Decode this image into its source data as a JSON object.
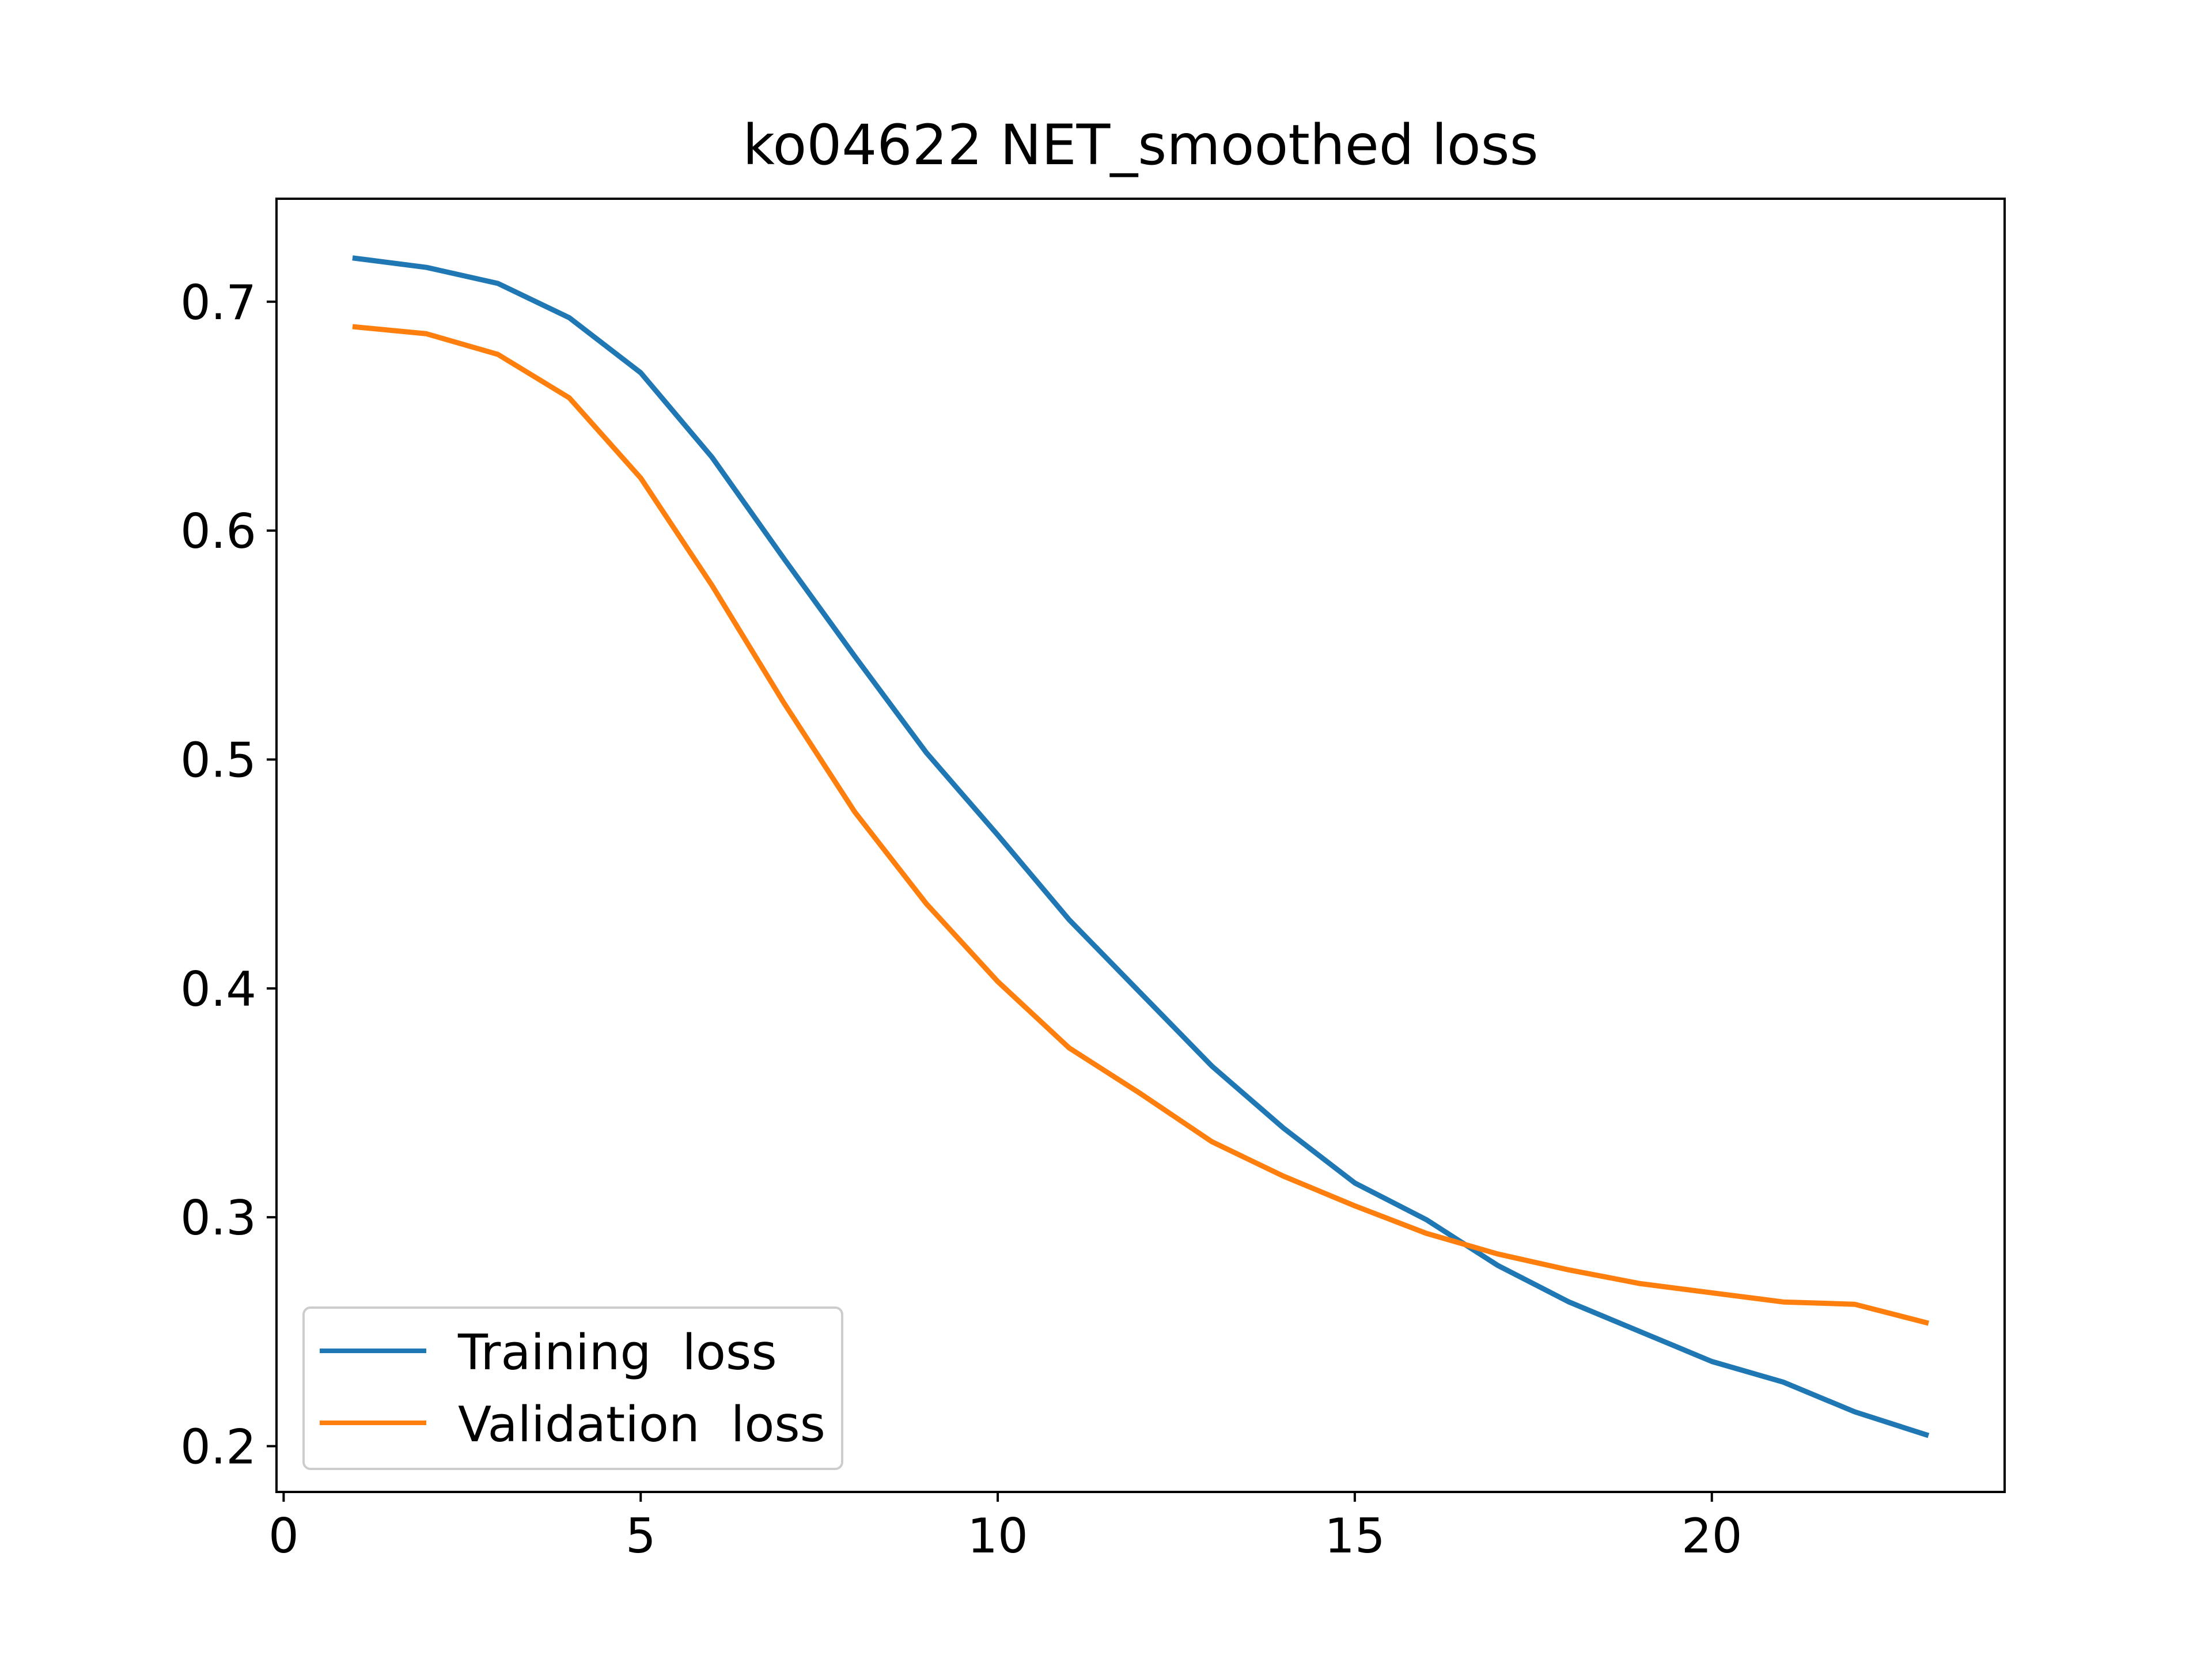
{
  "chart_data": {
    "type": "line",
    "title": "ko04622 NET_smoothed loss",
    "xlabel": "",
    "ylabel": "",
    "xlim": [
      -0.1,
      24.1
    ],
    "ylim": [
      0.18,
      0.745
    ],
    "xticks": [
      0,
      5,
      10,
      15,
      20
    ],
    "yticks": [
      0.2,
      0.3,
      0.4,
      0.5,
      0.6,
      0.7
    ],
    "xtick_labels": [
      "0",
      "5",
      "10",
      "15",
      "20"
    ],
    "ytick_labels": [
      "0.2",
      "0.3",
      "0.4",
      "0.5",
      "0.6",
      "0.7"
    ],
    "grid": false,
    "legend_position": "bottom-left",
    "x": [
      1,
      2,
      3,
      4,
      5,
      6,
      7,
      8,
      9,
      10,
      11,
      12,
      13,
      14,
      15,
      16,
      17,
      18,
      19,
      20,
      21,
      22,
      23
    ],
    "series": [
      {
        "name": "Training  loss",
        "color": "#1f77b4",
        "values": [
          0.719,
          0.715,
          0.708,
          0.693,
          0.669,
          0.632,
          0.588,
          0.545,
          0.503,
          0.467,
          0.43,
          0.398,
          0.366,
          0.339,
          0.315,
          0.299,
          0.279,
          0.263,
          0.25,
          0.237,
          0.228,
          0.215,
          0.205
        ]
      },
      {
        "name": "Validation  loss",
        "color": "#ff7f0e",
        "values": [
          0.689,
          0.686,
          0.677,
          0.658,
          0.623,
          0.576,
          0.525,
          0.477,
          0.437,
          0.403,
          0.374,
          0.354,
          0.333,
          0.318,
          0.305,
          0.293,
          0.284,
          0.277,
          0.271,
          0.267,
          0.263,
          0.262,
          0.254
        ]
      }
    ]
  }
}
